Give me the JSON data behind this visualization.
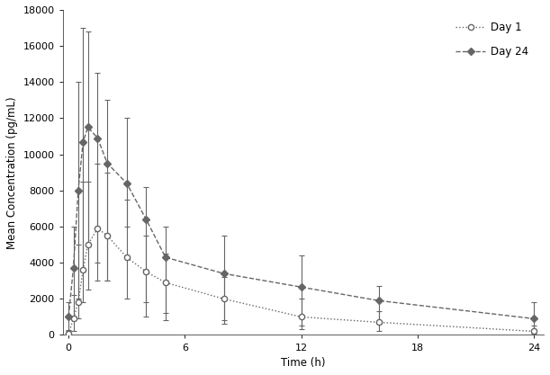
{
  "day1_x": [
    0,
    0.25,
    0.5,
    0.75,
    1.0,
    1.5,
    2.0,
    3.0,
    4.0,
    5.0,
    8.0,
    12.0,
    16.0,
    24.0
  ],
  "day1_y": [
    50,
    900,
    1800,
    3600,
    5000,
    5900,
    5500,
    4300,
    3500,
    2900,
    2000,
    1000,
    700,
    200
  ],
  "day1_err_lo": [
    50,
    700,
    900,
    1800,
    2500,
    2900,
    2500,
    2300,
    1700,
    1700,
    1200,
    700,
    500,
    150
  ],
  "day1_err_hi": [
    200,
    1300,
    3200,
    4900,
    3500,
    3600,
    3500,
    3200,
    2000,
    1600,
    1200,
    1000,
    600,
    300
  ],
  "day24_x": [
    0,
    0.25,
    0.5,
    0.75,
    1.0,
    1.5,
    2.0,
    3.0,
    4.0,
    5.0,
    8.0,
    12.0,
    16.0,
    24.0
  ],
  "day24_y": [
    1000,
    3700,
    8000,
    10700,
    11500,
    10900,
    9500,
    8400,
    6400,
    4300,
    3400,
    2650,
    1900,
    900
  ],
  "day24_err_lo": [
    800,
    2700,
    6000,
    7200,
    6500,
    6900,
    6500,
    2400,
    5400,
    3500,
    2800,
    2150,
    1300,
    700
  ],
  "day24_err_hi": [
    800,
    2300,
    6000,
    6300,
    5300,
    3600,
    3500,
    3600,
    1800,
    1700,
    2100,
    1750,
    800,
    900
  ],
  "xlabel": "Time (h)",
  "ylabel": "Mean Concentration (pg/mL)",
  "ylim": [
    0,
    18000
  ],
  "xlim": [
    -0.3,
    24.5
  ],
  "yticks": [
    0,
    2000,
    4000,
    6000,
    8000,
    10000,
    12000,
    14000,
    16000,
    18000
  ],
  "xticks": [
    0,
    6,
    12,
    18,
    24
  ],
  "day1_label": "Day 1",
  "day24_label": "Day 24",
  "line_color": "#666666",
  "background_color": "#ffffff"
}
